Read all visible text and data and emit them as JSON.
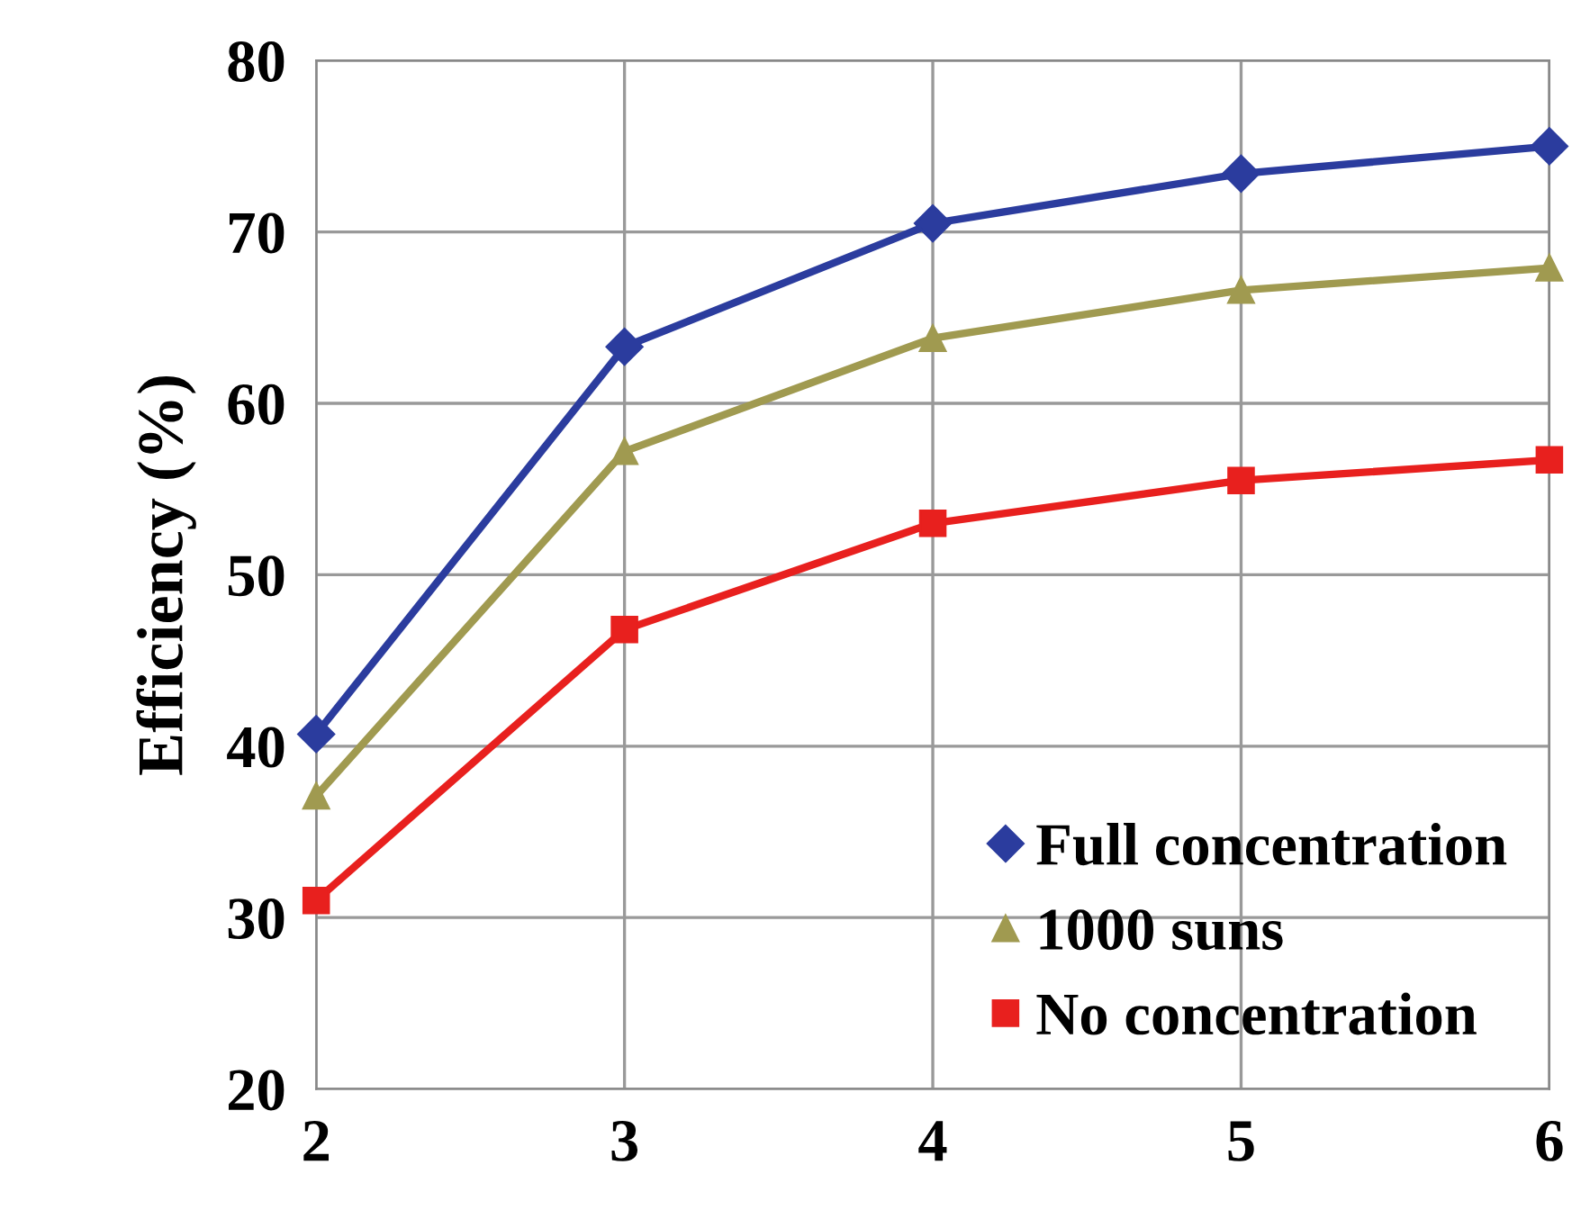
{
  "chart_data": {
    "type": "line",
    "ylabel": "Efficiency (%)",
    "x": [
      2,
      3,
      4,
      5,
      6
    ],
    "xlim": [
      2,
      6
    ],
    "xticks": [
      2,
      3,
      4,
      5,
      6
    ],
    "ylim": [
      20,
      80
    ],
    "yticks": [
      20,
      30,
      40,
      50,
      60,
      70,
      80
    ],
    "grid": true,
    "legend": "bottom right",
    "line_style": "solid",
    "series": [
      {
        "name": "Full concentration",
        "color": "#2b3c9e",
        "marker": "diamond",
        "values": [
          40.7,
          63.3,
          70.5,
          73.4,
          75.0
        ]
      },
      {
        "name": "1000 suns",
        "color": "#a09a50",
        "marker": "triangle",
        "values": [
          37.1,
          57.2,
          63.8,
          66.6,
          67.9
        ]
      },
      {
        "name": "No concentration",
        "color": "#e8201e",
        "marker": "square",
        "values": [
          31.0,
          46.8,
          53.0,
          55.5,
          56.7
        ]
      }
    ]
  }
}
